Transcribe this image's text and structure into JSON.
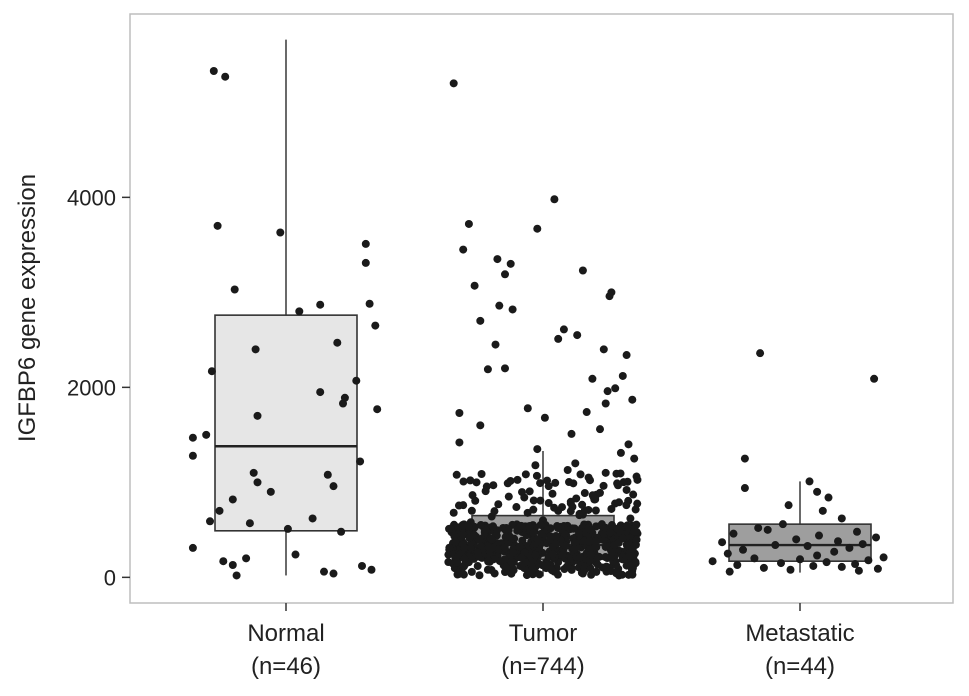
{
  "chart_data": {
    "type": "box",
    "title": "",
    "xlabel": "",
    "ylabel": "IGFBP6 gene expression",
    "ylim": [
      -270,
      5930
    ],
    "yticks": [
      0,
      2000,
      4000
    ],
    "ytick_labels": [
      "0",
      "2000",
      "4000"
    ],
    "grid": false,
    "legend": "none",
    "categories": [
      {
        "name": "Normal",
        "n_label": "(n=46)",
        "fill": "#e6e6e6",
        "box": {
          "min": 20,
          "q1": 490,
          "median": 1380,
          "q3": 2760,
          "max": 5660
        }
      },
      {
        "name": "Tumor",
        "n_label": "(n=744)",
        "fill": "#9e9e9e",
        "box": {
          "min": 10,
          "q1": 190,
          "median": 340,
          "q3": 650,
          "max": 1330
        }
      },
      {
        "name": "Metastatic",
        "n_label": "(n=44)",
        "fill": "#9e9e9e",
        "box": {
          "min": 50,
          "q1": 170,
          "median": 340,
          "q3": 560,
          "max": 1010
        }
      }
    ],
    "points": [
      {
        "category": "Normal",
        "y": [
          5330,
          5270,
          3700,
          3630,
          3030,
          2870,
          2800,
          3510,
          3310,
          2880,
          2650,
          2470,
          2400,
          2170,
          2070,
          1950,
          1890,
          1830,
          1770,
          1700,
          1500,
          1470,
          1280,
          1220,
          1100,
          1080,
          1000,
          960,
          820,
          620,
          590,
          570,
          510,
          480,
          310,
          240,
          200,
          170,
          130,
          80,
          40,
          20,
          120,
          900,
          700,
          60
        ],
        "jitter": [
          -0.38,
          -0.32,
          -0.36,
          -0.03,
          -0.27,
          0.18,
          0.07,
          0.42,
          0.42,
          0.44,
          0.47,
          0.27,
          -0.16,
          -0.39,
          0.37,
          0.18,
          0.31,
          0.3,
          0.48,
          -0.15,
          -0.42,
          -0.49,
          -0.49,
          0.39,
          -0.17,
          0.22,
          -0.15,
          0.25,
          -0.28,
          0.14,
          -0.4,
          -0.19,
          0.01,
          0.29,
          -0.49,
          0.05,
          -0.21,
          -0.33,
          -0.28,
          0.45,
          0.25,
          -0.26,
          0.4,
          -0.08,
          -0.35,
          0.2
        ]
      },
      {
        "category": "Tumor",
        "y": [
          5200,
          3980,
          3720,
          3670,
          3450,
          3350,
          3300,
          3230,
          3190,
          3070,
          3000,
          2960,
          2860,
          2820,
          2700,
          2610,
          2550,
          2510,
          2450,
          2400,
          2340,
          2200,
          2190,
          2120,
          2090,
          1990,
          1960,
          1870,
          1830,
          1780,
          1740,
          1730,
          1680,
          1600,
          1560,
          1510,
          1420,
          1400,
          1350,
          1310,
          1250,
          1200,
          1180,
          1130,
          1100,
          1050,
          1000,
          960,
          920,
          880,
          850,
          820,
          790,
          760,
          740,
          720,
          700,
          680,
          660,
          640,
          620,
          600,
          580,
          560,
          540,
          520,
          500,
          480,
          460,
          440,
          420,
          400,
          380,
          360,
          340,
          320,
          300,
          280,
          260,
          240,
          220,
          200,
          180,
          160,
          140,
          120,
          100,
          80,
          60,
          40,
          30,
          20
        ],
        "jitter": [
          -0.47,
          0.06,
          -0.39,
          -0.03,
          -0.42,
          -0.24,
          -0.17,
          0.21,
          -0.2,
          -0.36,
          0.36,
          0.35,
          -0.23,
          -0.16,
          -0.33,
          0.11,
          0.18,
          0.08,
          -0.25,
          0.32,
          0.44,
          -0.2,
          -0.29,
          0.42,
          0.26,
          0.38,
          0.34,
          0.47,
          0.33,
          -0.08,
          0.23,
          -0.44,
          0.01,
          -0.33,
          0.3,
          0.15,
          -0.44,
          0.45,
          -0.03,
          0.41,
          0.48,
          0.17,
          -0.04,
          0.13,
          0.33,
          0.24,
          -0.35,
          0.03,
          0.44,
          0.05,
          -0.18,
          0.27,
          0.4,
          -0.42,
          -0.14,
          0.36,
          0.08,
          -0.47,
          0.21,
          -0.27,
          0.46,
          0.0,
          -0.38,
          0.31,
          0.11,
          -0.21,
          0.44,
          -0.08,
          0.24,
          -0.43,
          0.17,
          -0.31,
          0.38,
          0.02,
          -0.15,
          0.33,
          -0.46,
          0.09,
          0.27,
          -0.24,
          0.42,
          -0.05,
          0.19,
          -0.39,
          0.48,
          -0.12,
          0.35,
          -0.29,
          0.06,
          0.21,
          -0.45,
          0.4
        ],
        "dense_cluster": {
          "count": 650,
          "min": 20,
          "q1": 190,
          "q3": 650,
          "max": 1100,
          "spread": 0.5
        }
      },
      {
        "category": "Metastatic",
        "y": [
          2360,
          2090,
          1250,
          1010,
          940,
          900,
          840,
          760,
          700,
          620,
          560,
          520,
          500,
          480,
          460,
          440,
          420,
          400,
          380,
          370,
          350,
          340,
          330,
          310,
          290,
          270,
          250,
          230,
          210,
          200,
          190,
          180,
          170,
          160,
          150,
          140,
          130,
          120,
          110,
          100,
          90,
          80,
          70,
          60
        ],
        "jitter": [
          -0.21,
          0.39,
          -0.29,
          0.05,
          -0.29,
          0.09,
          0.15,
          -0.06,
          0.12,
          0.22,
          -0.09,
          -0.22,
          -0.17,
          0.3,
          -0.35,
          0.1,
          0.4,
          -0.02,
          0.2,
          -0.41,
          0.33,
          -0.13,
          0.04,
          0.26,
          -0.3,
          0.18,
          -0.38,
          0.09,
          0.44,
          -0.24,
          0.0,
          0.36,
          -0.46,
          0.14,
          -0.1,
          0.29,
          -0.33,
          0.07,
          0.22,
          -0.19,
          0.41,
          -0.05,
          0.31,
          -0.37
        ]
      }
    ]
  }
}
